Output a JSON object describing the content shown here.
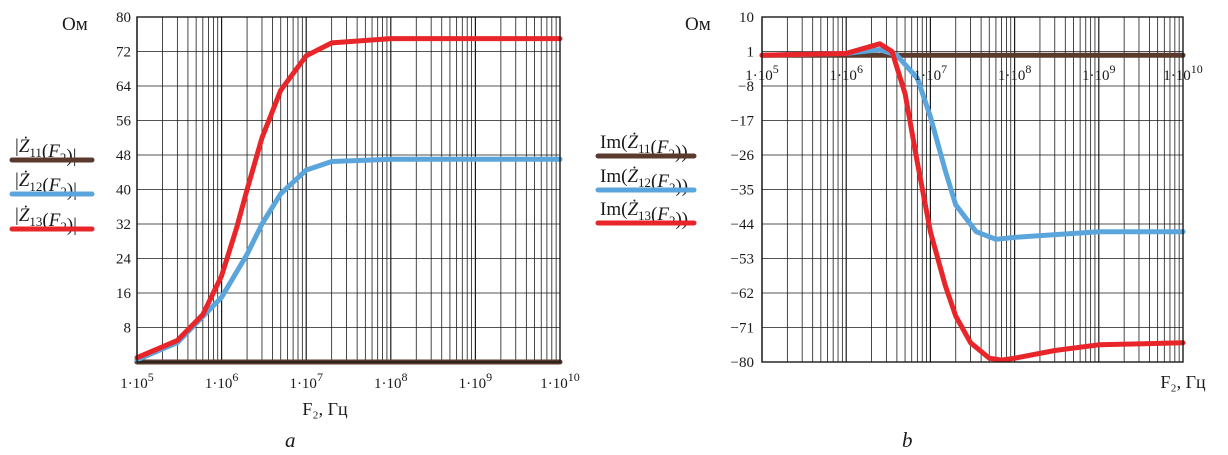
{
  "chart_data": [
    {
      "type": "line",
      "panel": "a",
      "unit_label": "Ом",
      "xlabel": "F₂, Гц",
      "xscale": "log",
      "xlim": [
        100000,
        10000000000
      ],
      "ylim": [
        0,
        80
      ],
      "grid": true,
      "legend_position": "left",
      "x_tick_labels": [
        "1·10^5",
        "1·10^6",
        "1·10^7",
        "1·10^8",
        "1·10^9",
        "1·10^10"
      ],
      "y_tick_labels": [
        "8",
        "16",
        "24",
        "32",
        "40",
        "48",
        "56",
        "64",
        "72",
        "80"
      ],
      "series": [
        {
          "name": "|Ż11(F2)|",
          "color": "#5b3a2e",
          "x": [
            100000,
            1000000,
            10000000,
            100000000,
            1000000000,
            10000000000
          ],
          "y": [
            0,
            0,
            0,
            0,
            0,
            0
          ]
        },
        {
          "name": "|Ż12(F2)|",
          "color": "#5aa6dc",
          "x": [
            100000,
            300000,
            1000000,
            2000000,
            3000000,
            5000000,
            10000000,
            20000000,
            100000000,
            1000000000,
            10000000000
          ],
          "y": [
            0.5,
            4.5,
            15,
            25,
            32,
            39,
            44.5,
            46.5,
            47,
            47,
            47
          ]
        },
        {
          "name": "|Ż13(F2)|",
          "color": "#e8262a",
          "x": [
            100000,
            300000,
            600000,
            1000000,
            1500000,
            2000000,
            3000000,
            5000000,
            10000000,
            20000000,
            100000000,
            1000000000,
            10000000000
          ],
          "y": [
            1,
            5,
            11,
            20,
            31,
            40,
            52,
            63,
            71,
            74,
            75,
            75,
            75
          ]
        }
      ]
    },
    {
      "type": "line",
      "panel": "b",
      "unit_label": "Ом",
      "xlabel": "F₂, Гц",
      "xscale": "log",
      "xlim": [
        100000,
        10000000000
      ],
      "ylim": [
        -80,
        10
      ],
      "grid": true,
      "legend_position": "left",
      "x_tick_labels": [
        "1·10^5",
        "1·10^6",
        "1·10^7",
        "1·10^8",
        "1·10^9",
        "1·10^10"
      ],
      "y_tick_labels": [
        "10",
        "1",
        "−8",
        "−17",
        "−26",
        "−35",
        "−44",
        "−53",
        "−62",
        "−71",
        "−80"
      ],
      "series": [
        {
          "name": "Im(Ż11(F2))",
          "color": "#5b3a2e",
          "x": [
            100000,
            1000000,
            10000000,
            100000000,
            1000000000,
            10000000000
          ],
          "y": [
            0,
            0,
            0,
            0,
            0,
            0
          ]
        },
        {
          "name": "Im(Ż12(F2))",
          "color": "#5aa6dc",
          "x": [
            100000,
            1000000,
            2500000,
            4000000,
            7000000,
            10000000,
            15000000,
            20000000,
            35000000,
            60000000,
            100000000,
            1000000000,
            10000000000
          ],
          "y": [
            0,
            0.5,
            1.5,
            0,
            -6,
            -16,
            -30,
            -39,
            -46,
            -48,
            -47.5,
            -46,
            -46
          ]
        },
        {
          "name": "Im(Ż13(F2))",
          "color": "#e8262a",
          "x": [
            100000,
            1000000,
            2500000,
            3500000,
            5000000,
            7000000,
            10000000,
            15000000,
            20000000,
            30000000,
            50000000,
            70000000,
            100000000,
            300000000,
            1000000000,
            10000000000
          ],
          "y": [
            0,
            0.5,
            3,
            1,
            -10,
            -28,
            -46,
            -60,
            -68,
            -75,
            -79,
            -79.5,
            -79,
            -77,
            -75.5,
            -75
          ]
        }
      ]
    }
  ]
}
